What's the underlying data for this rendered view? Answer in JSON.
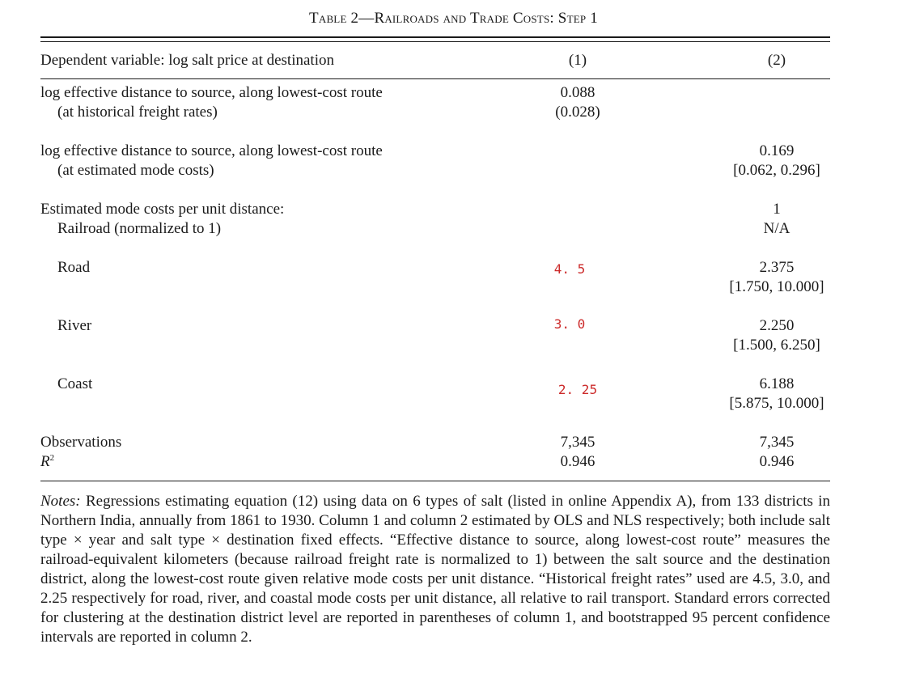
{
  "table": {
    "title": "Table 2—Railroads and Trade Costs: Step 1",
    "header": {
      "dependent_label": "Dependent variable: log salt price at destination",
      "col1": "(1)",
      "col2": "(2)"
    },
    "rows": {
      "hist_label_1": "log effective distance to source, along lowest-cost route",
      "hist_label_2": "(at historical freight rates)",
      "hist_col1_value": "0.088",
      "hist_col1_se": "(0.028)",
      "est_label_1": "log effective distance to source, along lowest-cost route",
      "est_label_2": "(at estimated mode costs)",
      "est_col2_value": "0.169",
      "est_col2_ci": "[0.062, 0.296]",
      "mode_heading": "Estimated mode costs per unit distance:",
      "railroad_label": "Railroad (normalized to 1)",
      "railroad_col2_value": "1",
      "railroad_col2_ci": "N/A",
      "road_label": "Road",
      "road_col1": "4. 5",
      "road_col2_value": "2.375",
      "road_col2_ci": "[1.750, 10.000]",
      "river_label": "River",
      "river_col1": "3. 0",
      "river_col2_value": "2.250",
      "river_col2_ci": "[1.500, 6.250]",
      "coast_label": "Coast",
      "coast_col1": "2. 25",
      "coast_col2_value": "6.188",
      "coast_col2_ci": "[5.875, 10.000]",
      "obs_label": "Observations",
      "obs_col1": "7,345",
      "obs_col2": "7,345",
      "r2_label": "R",
      "r2_sup": "2",
      "r2_col1": "0.946",
      "r2_col2": "0.946"
    },
    "notes_lead": "Notes:",
    "notes_text": "Regressions estimating equation (12) using data on 6 types of salt (listed in online Appendix A), from 133 districts in Northern India, annually from 1861 to 1930. Column 1 and column 2 estimated by OLS and NLS respectively; both include salt type × year and salt type × destination fixed effects. “Effective distance to source, along lowest-cost route” measures the railroad-equivalent kilometers (because railroad freight rate is normalized to 1) between the salt source and the destination district, along the lowest-cost route given relative mode costs per unit distance. “Historical freight rates” used are 4.5, 3.0, and 2.25 respectively for road, river, and coastal mode costs per unit distance, all relative to rail transport. Standard errors corrected for clustering at the destination district level are reported in parentheses of column 1, and bootstrapped 95 percent confidence intervals are reported in column 2."
  }
}
